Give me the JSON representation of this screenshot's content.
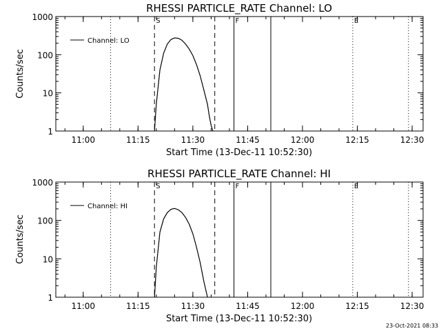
{
  "footer": {
    "timestamp": "23-Oct-2021 08:33"
  },
  "chart_data": [
    {
      "type": "line",
      "title": "RHESSI PARTICLE_RATE Channel: LO",
      "xlabel": "Start Time (13-Dec-11 10:52:30)",
      "ylabel": "Counts/sec",
      "ylim": [
        1,
        1000
      ],
      "yscale": "log",
      "x_unit": "time HH:MM",
      "xlim": [
        "10:52:30",
        "12:33:00"
      ],
      "x_ticks": [
        "11:00",
        "11:15",
        "11:30",
        "11:45",
        "12:00",
        "12:15",
        "12:30"
      ],
      "y_ticks": [
        "1",
        "10",
        "100",
        "1000"
      ],
      "legend": {
        "position": "top-left",
        "entries": [
          "Channel: LO"
        ]
      },
      "markers": [
        {
          "time": "11:07:30",
          "style": "dotted",
          "label": ""
        },
        {
          "time": "11:19:30",
          "style": "dashed",
          "label": "S"
        },
        {
          "time": "11:36:00",
          "style": "dashed",
          "label": ""
        },
        {
          "time": "11:41:15",
          "style": "solid",
          "label": "F"
        },
        {
          "time": "11:51:20",
          "style": "solid",
          "label": ""
        },
        {
          "time": "12:13:45",
          "style": "dotted",
          "label": "E"
        },
        {
          "time": "12:29:00",
          "style": "dotted",
          "label": ""
        }
      ],
      "series": [
        {
          "name": "Channel: LO",
          "x": [
            "11:19:30",
            "11:20:00",
            "11:21:00",
            "11:22:00",
            "11:23:00",
            "11:24:00",
            "11:25:00",
            "11:26:00",
            "11:27:00",
            "11:28:00",
            "11:29:00",
            "11:30:00",
            "11:31:00",
            "11:32:00",
            "11:33:00",
            "11:34:00",
            "11:34:30",
            "11:35:00",
            "11:35:30"
          ],
          "values": [
            1,
            5,
            40,
            110,
            190,
            250,
            275,
            270,
            240,
            190,
            140,
            95,
            55,
            28,
            12,
            5,
            2.5,
            1.4,
            1
          ]
        }
      ]
    },
    {
      "type": "line",
      "title": "RHESSI PARTICLE_RATE Channel: HI",
      "xlabel": "Start Time (13-Dec-11 10:52:30)",
      "ylabel": "Counts/sec",
      "ylim": [
        1,
        1000
      ],
      "yscale": "log",
      "x_unit": "time HH:MM",
      "xlim": [
        "10:52:30",
        "12:33:00"
      ],
      "x_ticks": [
        "11:00",
        "11:15",
        "11:30",
        "11:45",
        "12:00",
        "12:15",
        "12:30"
      ],
      "y_ticks": [
        "1",
        "10",
        "100",
        "1000"
      ],
      "legend": {
        "position": "top-left",
        "entries": [
          "Channel: HI"
        ]
      },
      "markers": [
        {
          "time": "11:07:30",
          "style": "dotted",
          "label": ""
        },
        {
          "time": "11:19:30",
          "style": "dashed",
          "label": "S"
        },
        {
          "time": "11:36:00",
          "style": "dashed",
          "label": ""
        },
        {
          "time": "11:41:15",
          "style": "solid",
          "label": "F"
        },
        {
          "time": "11:51:20",
          "style": "solid",
          "label": ""
        },
        {
          "time": "12:13:45",
          "style": "dotted",
          "label": "E"
        },
        {
          "time": "12:29:00",
          "style": "dotted",
          "label": ""
        }
      ],
      "series": [
        {
          "name": "Channel: HI",
          "x": [
            "11:19:30",
            "11:20:00",
            "11:21:00",
            "11:22:00",
            "11:23:00",
            "11:24:00",
            "11:25:00",
            "11:26:00",
            "11:27:00",
            "11:28:00",
            "11:29:00",
            "11:30:00",
            "11:31:00",
            "11:32:00",
            "11:33:00",
            "11:34:00"
          ],
          "values": [
            1,
            6,
            50,
            110,
            160,
            195,
            205,
            190,
            160,
            120,
            80,
            45,
            20,
            8,
            2.6,
            1
          ]
        }
      ]
    }
  ]
}
